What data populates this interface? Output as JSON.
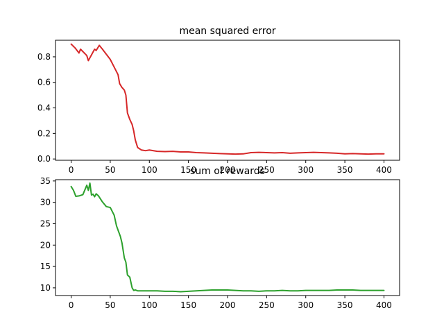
{
  "chart_data": [
    {
      "type": "line",
      "title": "mean squared error",
      "xlabel": "",
      "ylabel": "",
      "xlim": [
        -20,
        420
      ],
      "ylim": [
        -0.01,
        0.93
      ],
      "xticks": [
        0,
        50,
        100,
        150,
        200,
        250,
        300,
        350,
        400
      ],
      "yticks": [
        0.0,
        0.2,
        0.4,
        0.6,
        0.8
      ],
      "ytick_labels": [
        "0.0",
        "0.2",
        "0.4",
        "0.6",
        "0.8"
      ],
      "grid": false,
      "series": [
        {
          "color": "#d62728",
          "x": [
            0,
            5,
            10,
            12,
            20,
            22,
            30,
            32,
            36,
            40,
            45,
            50,
            55,
            60,
            62,
            65,
            68,
            70,
            72,
            75,
            78,
            80,
            82,
            85,
            90,
            95,
            100,
            110,
            120,
            130,
            140,
            150,
            160,
            170,
            180,
            190,
            200,
            210,
            220,
            230,
            240,
            250,
            260,
            270,
            280,
            290,
            300,
            310,
            320,
            330,
            340,
            350,
            360,
            370,
            380,
            390,
            400
          ],
          "y": [
            0.9,
            0.87,
            0.83,
            0.86,
            0.81,
            0.77,
            0.86,
            0.85,
            0.89,
            0.86,
            0.82,
            0.78,
            0.72,
            0.66,
            0.59,
            0.56,
            0.54,
            0.5,
            0.36,
            0.31,
            0.27,
            0.22,
            0.15,
            0.09,
            0.07,
            0.065,
            0.07,
            0.06,
            0.058,
            0.06,
            0.055,
            0.055,
            0.05,
            0.048,
            0.045,
            0.042,
            0.04,
            0.038,
            0.04,
            0.05,
            0.052,
            0.05,
            0.048,
            0.05,
            0.045,
            0.048,
            0.05,
            0.052,
            0.05,
            0.048,
            0.045,
            0.04,
            0.042,
            0.04,
            0.038,
            0.04,
            0.04
          ]
        }
      ]
    },
    {
      "type": "line",
      "title": "sum of rewards",
      "xlabel": "",
      "ylabel": "",
      "xlim": [
        -20,
        420
      ],
      "ylim": [
        8.2,
        35.3
      ],
      "xticks": [
        0,
        50,
        100,
        150,
        200,
        250,
        300,
        350,
        400
      ],
      "yticks": [
        10,
        15,
        20,
        25,
        30,
        35
      ],
      "ytick_labels": [
        "10",
        "15",
        "20",
        "25",
        "30",
        "35"
      ],
      "grid": false,
      "series": [
        {
          "color": "#2ca02c",
          "x": [
            0,
            3,
            6,
            10,
            15,
            18,
            20,
            22,
            24,
            26,
            28,
            30,
            32,
            35,
            40,
            45,
            50,
            55,
            58,
            60,
            63,
            65,
            68,
            70,
            72,
            75,
            78,
            80,
            82,
            85,
            90,
            100,
            110,
            120,
            130,
            140,
            150,
            160,
            170,
            180,
            190,
            200,
            210,
            220,
            230,
            240,
            250,
            260,
            270,
            280,
            290,
            300,
            310,
            320,
            330,
            340,
            350,
            360,
            370,
            380,
            390,
            400
          ],
          "y": [
            33.7,
            32.8,
            31.4,
            31.5,
            31.8,
            33.1,
            34.0,
            32.8,
            34.5,
            31.7,
            31.9,
            31.3,
            32.0,
            31.5,
            30.1,
            29.0,
            28.8,
            27.0,
            24.5,
            23.5,
            22.0,
            20.5,
            17.0,
            16.0,
            13.0,
            12.5,
            10.0,
            9.4,
            9.5,
            9.3,
            9.3,
            9.3,
            9.3,
            9.2,
            9.2,
            9.1,
            9.2,
            9.3,
            9.4,
            9.5,
            9.5,
            9.5,
            9.4,
            9.3,
            9.3,
            9.2,
            9.3,
            9.3,
            9.4,
            9.3,
            9.3,
            9.4,
            9.4,
            9.4,
            9.4,
            9.5,
            9.5,
            9.5,
            9.4,
            9.4,
            9.4,
            9.4
          ]
        }
      ]
    }
  ]
}
